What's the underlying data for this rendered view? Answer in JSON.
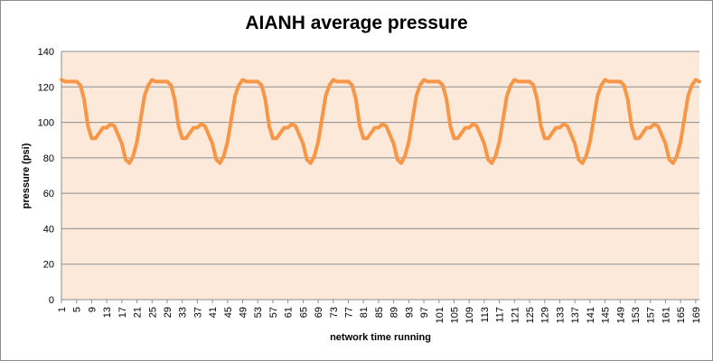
{
  "chart_data": {
    "type": "line",
    "title": "AIANH average pressure",
    "xlabel": "network time running",
    "ylabel": "pressure (psi)",
    "xlim": [
      1,
      170
    ],
    "ylim": [
      0,
      140
    ],
    "yticks": [
      0,
      20,
      40,
      60,
      80,
      100,
      120,
      140
    ],
    "xtick_labels": [
      "1",
      "5",
      "9",
      "13",
      "17",
      "21",
      "25",
      "29",
      "33",
      "37",
      "41",
      "45",
      "49",
      "53",
      "57",
      "61",
      "65",
      "69",
      "73",
      "77",
      "81",
      "85",
      "89",
      "93",
      "97",
      "101",
      "105",
      "109",
      "113",
      "117",
      "121",
      "125",
      "129",
      "133",
      "137",
      "141",
      "145",
      "149",
      "153",
      "157",
      "161",
      "165",
      "169"
    ],
    "grid": true,
    "colors": {
      "line": "#f79646",
      "plot_bg": "#fde9d9",
      "grid": "#8c8c8c"
    },
    "period": 24,
    "cycle_profile": [
      [
        0,
        124
      ],
      [
        1,
        123
      ],
      [
        2,
        123
      ],
      [
        3,
        123
      ],
      [
        4,
        123
      ],
      [
        5,
        121
      ],
      [
        6,
        113
      ],
      [
        7,
        98
      ],
      [
        8,
        91
      ],
      [
        9,
        91
      ],
      [
        10,
        94
      ],
      [
        11,
        97
      ],
      [
        12,
        97
      ],
      [
        13,
        99
      ],
      [
        14,
        98
      ],
      [
        15,
        93
      ],
      [
        16,
        88
      ],
      [
        17,
        79
      ],
      [
        18,
        77
      ],
      [
        19,
        81
      ],
      [
        20,
        89
      ],
      [
        21,
        102
      ],
      [
        22,
        115
      ],
      [
        23,
        121
      ]
    ],
    "series": [
      {
        "x": [
          1,
          170
        ],
        "cycles": 8
      }
    ]
  }
}
